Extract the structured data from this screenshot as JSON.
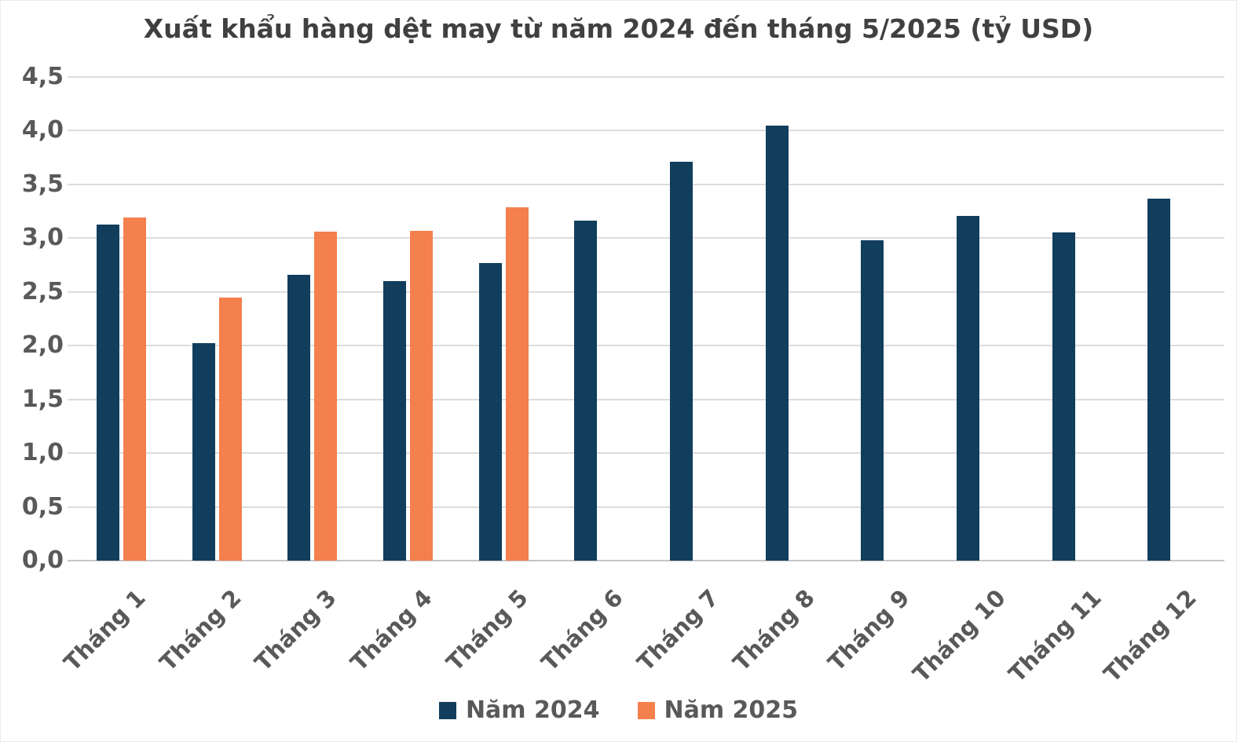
{
  "title": "Xuất khẩu hàng dệt may từ năm 2024 đến tháng 5/2025 (tỷ USD)",
  "colors": {
    "series_2024": "#113E5D",
    "series_2025": "#F4804D",
    "gridline": "#DCDCDC",
    "axis_line": "#C6C6C6",
    "title_text": "#404040",
    "axis_text": "#595959",
    "background": "#FFFFFF"
  },
  "legend": {
    "position": "bottom",
    "items": [
      {
        "label": "Năm 2024",
        "color": "#113E5D"
      },
      {
        "label": "Năm 2025",
        "color": "#F4804D"
      }
    ]
  },
  "chart_data": {
    "type": "bar",
    "title": "Xuất khẩu hàng dệt may từ năm 2024 đến tháng 5/2025 (tỷ USD)",
    "categories": [
      "Tháng 1",
      "Tháng 2",
      "Tháng 3",
      "Tháng 4",
      "Tháng 5",
      "Tháng 6",
      "Tháng 7",
      "Tháng 8",
      "Tháng 9",
      "Tháng 10",
      "Tháng 11",
      "Tháng 12"
    ],
    "series": [
      {
        "name": "Năm 2024",
        "color": "#113E5D",
        "values": [
          3.13,
          2.02,
          2.66,
          2.6,
          2.77,
          3.16,
          3.71,
          4.05,
          2.98,
          3.21,
          3.05,
          3.37
        ]
      },
      {
        "name": "Năm 2025",
        "color": "#F4804D",
        "values": [
          3.19,
          2.45,
          3.06,
          3.07,
          3.29,
          null,
          null,
          null,
          null,
          null,
          null,
          null
        ]
      }
    ],
    "xlabel": "",
    "ylabel": "",
    "ylim": [
      0,
      4.5
    ],
    "y_step": 0.5,
    "y_tick_labels": [
      "0,0",
      "0,5",
      "1,0",
      "1,5",
      "2,0",
      "2,5",
      "3,0",
      "3,5",
      "4,0",
      "4,5"
    ],
    "decimal_separator": ",",
    "grid": true,
    "legend_position": "bottom"
  }
}
